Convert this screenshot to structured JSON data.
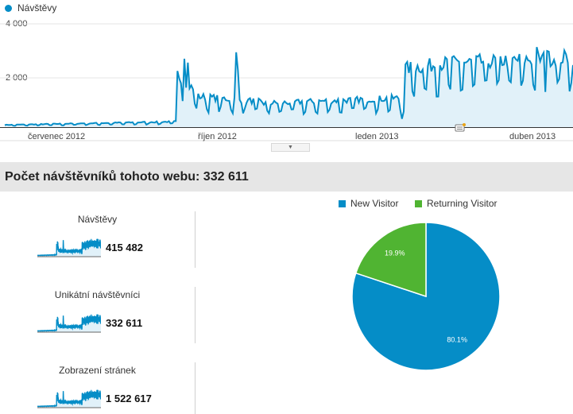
{
  "top_chart": {
    "legend": "Návštěvy",
    "y_ticks": [
      "4 000",
      "2 000"
    ],
    "x_ticks": [
      "červenec 2012",
      "říjen 2012",
      "leden 2013",
      "duben 2013"
    ],
    "ylim": [
      0,
      4000
    ],
    "color": "#058dc7",
    "fill_color": "#e1f1f9"
  },
  "section_title": "Počet návštěvníků tohoto webu: 332 611",
  "metrics": [
    {
      "label": "Návštěvy",
      "value": "415 482"
    },
    {
      "label": "Unikátní návštěvníci",
      "value": "332 611"
    },
    {
      "label": "Zobrazení stránek",
      "value": "1 522 617"
    }
  ],
  "chart_data": {
    "type": "pie",
    "title": "",
    "labels": [
      "New Visitor",
      "Returning Visitor"
    ],
    "values": [
      80.1,
      19.9
    ],
    "value_labels": [
      "80.1%",
      "19.9%"
    ],
    "colors": [
      "#058dc7",
      "#50b432"
    ],
    "legend_position": "top"
  }
}
